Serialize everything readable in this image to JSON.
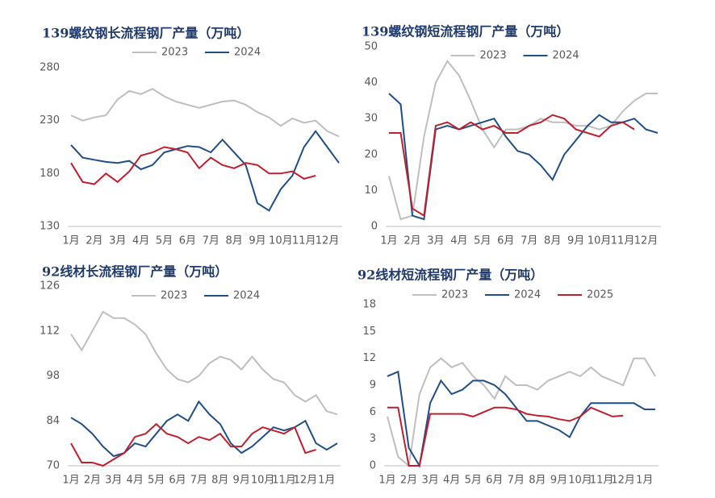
{
  "chart_data": [
    {
      "type": "line",
      "title": "139螺纹钢长流程钢厂产量（万吨）",
      "categories": [
        "1月",
        null,
        "2月",
        null,
        "3月",
        null,
        "4月",
        null,
        "5月",
        null,
        "6月",
        null,
        "7月",
        null,
        "8月",
        null,
        "9月",
        null,
        "10月",
        null,
        "11月",
        null,
        "12月",
        null
      ],
      "ylim": [
        130,
        280
      ],
      "yticks": [
        130,
        180,
        230,
        280
      ],
      "series": [
        {
          "name": "2023",
          "color": "#bfbfbf",
          "values": [
            235,
            230,
            233,
            235,
            250,
            258,
            255,
            260,
            253,
            248,
            245,
            242,
            245,
            248,
            249,
            245,
            238,
            233,
            225,
            232,
            228,
            230,
            220,
            215
          ]
        },
        {
          "name": "2024",
          "color": "#1f4e89",
          "values": [
            207,
            195,
            193,
            191,
            190,
            192,
            184,
            188,
            200,
            203,
            206,
            205,
            200,
            212,
            200,
            188,
            152,
            145,
            165,
            178,
            205,
            220,
            205,
            190
          ]
        },
        {
          "color": "#c0202e",
          "values": [
            190,
            172,
            170,
            180,
            172,
            182,
            197,
            200,
            205,
            203,
            200,
            185,
            195,
            188,
            185,
            190,
            188,
            180,
            180,
            182,
            175,
            178,
            null,
            null
          ]
        }
      ]
    },
    {
      "type": "line",
      "title": "139螺纹钢短流程钢厂产量（万吨）",
      "categories": [
        "1月",
        null,
        "2月",
        null,
        "3月",
        null,
        "4月",
        null,
        "5月",
        null,
        "6月",
        null,
        "7月",
        null,
        "8月",
        null,
        "9月",
        null,
        "10月",
        null,
        "11月",
        null,
        "12月",
        null
      ],
      "ylim": [
        0,
        50
      ],
      "yticks": [
        0,
        10,
        20,
        30,
        40,
        50
      ],
      "series": [
        {
          "name": "2023",
          "color": "#bfbfbf",
          "values": [
            14,
            2,
            3,
            25,
            40,
            46,
            42,
            35,
            27,
            22,
            27,
            27,
            28,
            30,
            29,
            29,
            28,
            28,
            27,
            28,
            32,
            35,
            37,
            37
          ]
        },
        {
          "name": "2024",
          "color": "#1f4e89",
          "values": [
            37,
            34,
            3,
            2,
            27,
            28,
            27,
            28,
            29,
            30,
            25,
            21,
            20,
            17,
            13,
            20,
            24,
            28,
            31,
            29,
            29,
            30,
            27,
            26
          ]
        },
        {
          "color": "#c0202e",
          "values": [
            26,
            26,
            5,
            3,
            28,
            29,
            27,
            29,
            27,
            28,
            26,
            26,
            28,
            29,
            31,
            30,
            27,
            26,
            25,
            28,
            29,
            27,
            null,
            null
          ]
        }
      ]
    },
    {
      "type": "line",
      "title": "92线材长流程钢厂产量（万吨）",
      "categories": [
        "1月",
        null,
        "2月",
        null,
        "3月",
        null,
        "4月",
        null,
        "5月",
        null,
        "6月",
        null,
        "7月",
        null,
        "8月",
        null,
        "9月",
        null,
        "10月",
        null,
        "11月",
        null,
        "12月",
        null,
        "1月",
        null
      ],
      "ylim": [
        70,
        126
      ],
      "yticks": [
        70,
        84,
        98,
        112,
        126
      ],
      "series": [
        {
          "name": "2023",
          "color": "#bfbfbf",
          "values": [
            111,
            106,
            112,
            118,
            116,
            116,
            114,
            111,
            105,
            100,
            97,
            96,
            98,
            102,
            104,
            103,
            100,
            104,
            100,
            97,
            96,
            92,
            90,
            92,
            87,
            86
          ]
        },
        {
          "name": "2024",
          "color": "#1f4e89",
          "values": [
            85,
            83,
            80,
            76,
            73,
            74,
            77,
            76,
            80,
            84,
            86,
            84,
            90,
            86,
            83,
            77,
            74,
            76,
            79,
            82,
            81,
            82,
            84,
            77,
            75,
            77
          ]
        },
        {
          "color": "#c0202e",
          "values": [
            77,
            71,
            71,
            70,
            72,
            74,
            79,
            80,
            83,
            80,
            79,
            77,
            79,
            78,
            80,
            76,
            76,
            80,
            82,
            81,
            80,
            82,
            74,
            75,
            null,
            null
          ]
        }
      ]
    },
    {
      "type": "line",
      "title": "92线材短流程钢厂产量（万吨）",
      "categories": [
        "1月",
        null,
        "2月",
        null,
        "3月",
        null,
        "4月",
        null,
        "5月",
        null,
        "6月",
        null,
        "7月",
        null,
        "8月",
        null,
        "9月",
        null,
        "10月",
        null,
        "11月",
        null,
        "12月",
        null,
        "1月",
        null
      ],
      "ylim": [
        0,
        18
      ],
      "yticks": [
        0,
        3,
        6,
        9,
        12,
        15,
        18
      ],
      "series": [
        {
          "name": "2023",
          "color": "#bfbfbf",
          "values": [
            5.5,
            1,
            0,
            8,
            11,
            12,
            11,
            11.5,
            10,
            9,
            7.5,
            10,
            9,
            9,
            8.5,
            9.5,
            10,
            10.5,
            10,
            11,
            10,
            9.5,
            9,
            12,
            12,
            10
          ]
        },
        {
          "name": "2024",
          "color": "#1f4e89",
          "values": [
            10,
            10.5,
            2,
            0,
            7,
            9.5,
            8,
            8.5,
            9.5,
            9.5,
            9,
            8,
            6.5,
            5,
            5,
            4.5,
            4,
            3.2,
            5.5,
            7,
            7,
            7,
            7,
            7,
            6.3,
            6.3
          ]
        },
        {
          "name": "2025",
          "color": "#c0202e",
          "values": [
            6.5,
            6.5,
            0,
            0,
            5.8,
            5.8,
            5.8,
            5.8,
            5.5,
            6,
            6.5,
            6.5,
            6.3,
            5.8,
            5.6,
            5.5,
            5.2,
            5,
            5.5,
            6.5,
            6,
            5.5,
            5.6,
            null,
            null,
            null
          ]
        }
      ]
    }
  ]
}
